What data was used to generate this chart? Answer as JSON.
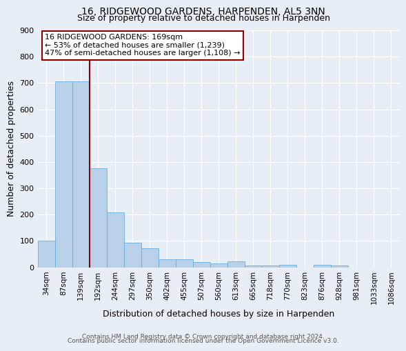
{
  "title": "16, RIDGEWOOD GARDENS, HARPENDEN, AL5 3NN",
  "subtitle": "Size of property relative to detached houses in Harpenden",
  "xlabel": "Distribution of detached houses by size in Harpenden",
  "ylabel": "Number of detached properties",
  "bin_labels": [
    "34sqm",
    "87sqm",
    "139sqm",
    "192sqm",
    "244sqm",
    "297sqm",
    "350sqm",
    "402sqm",
    "455sqm",
    "507sqm",
    "560sqm",
    "613sqm",
    "665sqm",
    "718sqm",
    "770sqm",
    "823sqm",
    "876sqm",
    "928sqm",
    "981sqm",
    "1033sqm",
    "1086sqm"
  ],
  "bar_heights": [
    101,
    707,
    707,
    375,
    208,
    93,
    73,
    30,
    30,
    19,
    15,
    22,
    6,
    7,
    9,
    0,
    10,
    8,
    0,
    0,
    0
  ],
  "vline_x": 2.5,
  "annotation_line1": "16 RIDGEWOOD GARDENS: 169sqm",
  "annotation_line2": "← 53% of detached houses are smaller (1,239)",
  "annotation_line3": "47% of semi-detached houses are larger (1,108) →",
  "bar_color": "#b8d0e8",
  "bar_edge_color": "#6baed6",
  "vline_color": "#8b0000",
  "annotation_box_edgecolor": "#8b0000",
  "background_color": "#e8eef5",
  "grid_color": "#ffffff",
  "footer_text1": "Contains HM Land Registry data © Crown copyright and database right 2024.",
  "footer_text2": "Contains public sector information licensed under the Open Government Licence v3.0.",
  "ylim": [
    0,
    900
  ],
  "yticks": [
    0,
    100,
    200,
    300,
    400,
    500,
    600,
    700,
    800,
    900
  ]
}
